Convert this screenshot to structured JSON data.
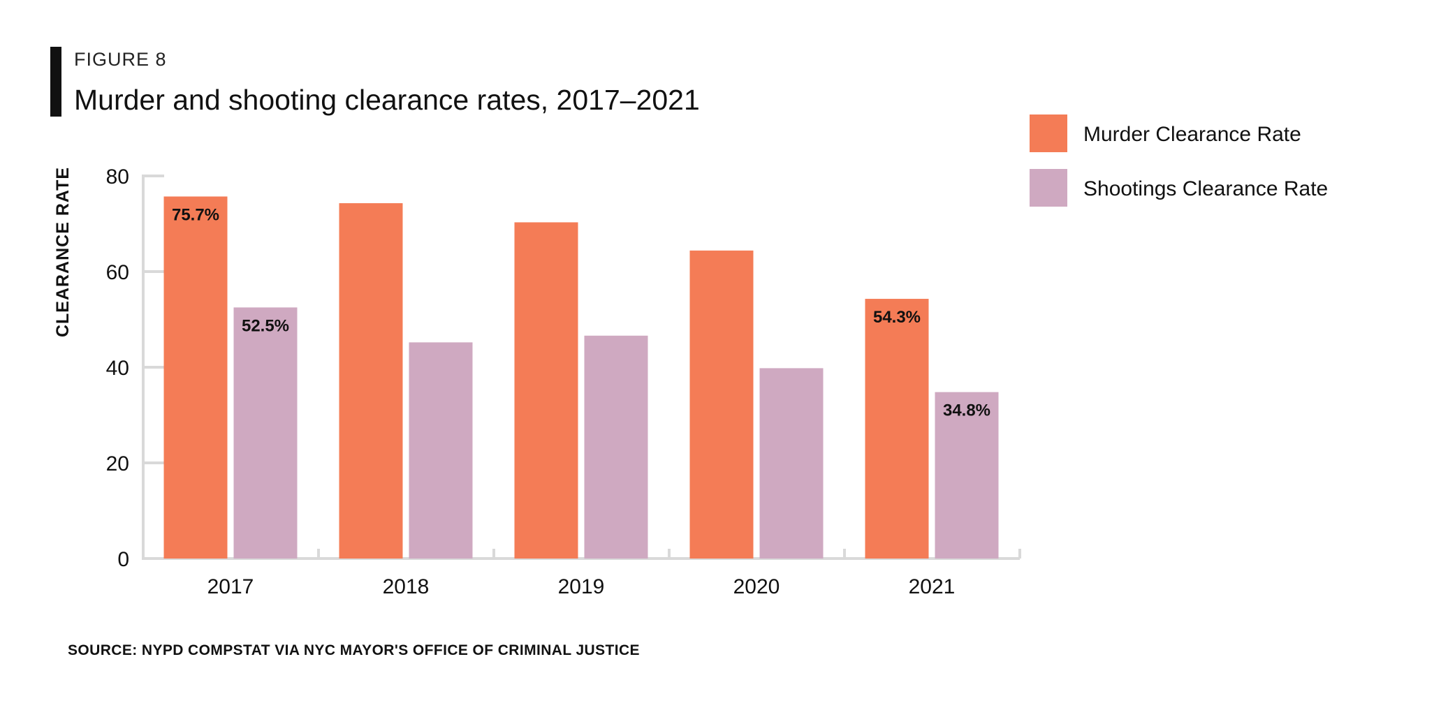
{
  "figure": {
    "label": "FIGURE 8",
    "title": "Murder and shooting clearance rates, 2017–2021"
  },
  "source": "SOURCE: NYPD COMPSTAT VIA NYC MAYOR'S OFFICE OF CRIMINAL JUSTICE",
  "colors": {
    "murder": "#F47C56",
    "shootings": "#CFA9C1",
    "axis": "#D9D9D9",
    "text": "#111111"
  },
  "chart_data": {
    "type": "bar",
    "title": "Murder and shooting clearance rates, 2017–2021",
    "xlabel": "",
    "ylabel": "CLEARANCE RATE",
    "ylim": [
      0,
      80
    ],
    "yticks": [
      0,
      20,
      40,
      60,
      80
    ],
    "categories": [
      "2017",
      "2018",
      "2019",
      "2020",
      "2021"
    ],
    "grid": false,
    "legend_position": "top-right",
    "series": [
      {
        "name": "Murder Clearance Rate",
        "color": "#F47C56",
        "values": [
          75.7,
          74.3,
          70.3,
          64.4,
          54.3
        ],
        "data_labels": [
          "75.7%",
          "",
          "",
          "",
          "54.3%"
        ]
      },
      {
        "name": "Shootings Clearance Rate",
        "color": "#CFA9C1",
        "values": [
          52.5,
          45.2,
          46.6,
          39.8,
          34.8
        ],
        "data_labels": [
          "52.5%",
          "",
          "",
          "",
          "34.8%"
        ]
      }
    ]
  }
}
